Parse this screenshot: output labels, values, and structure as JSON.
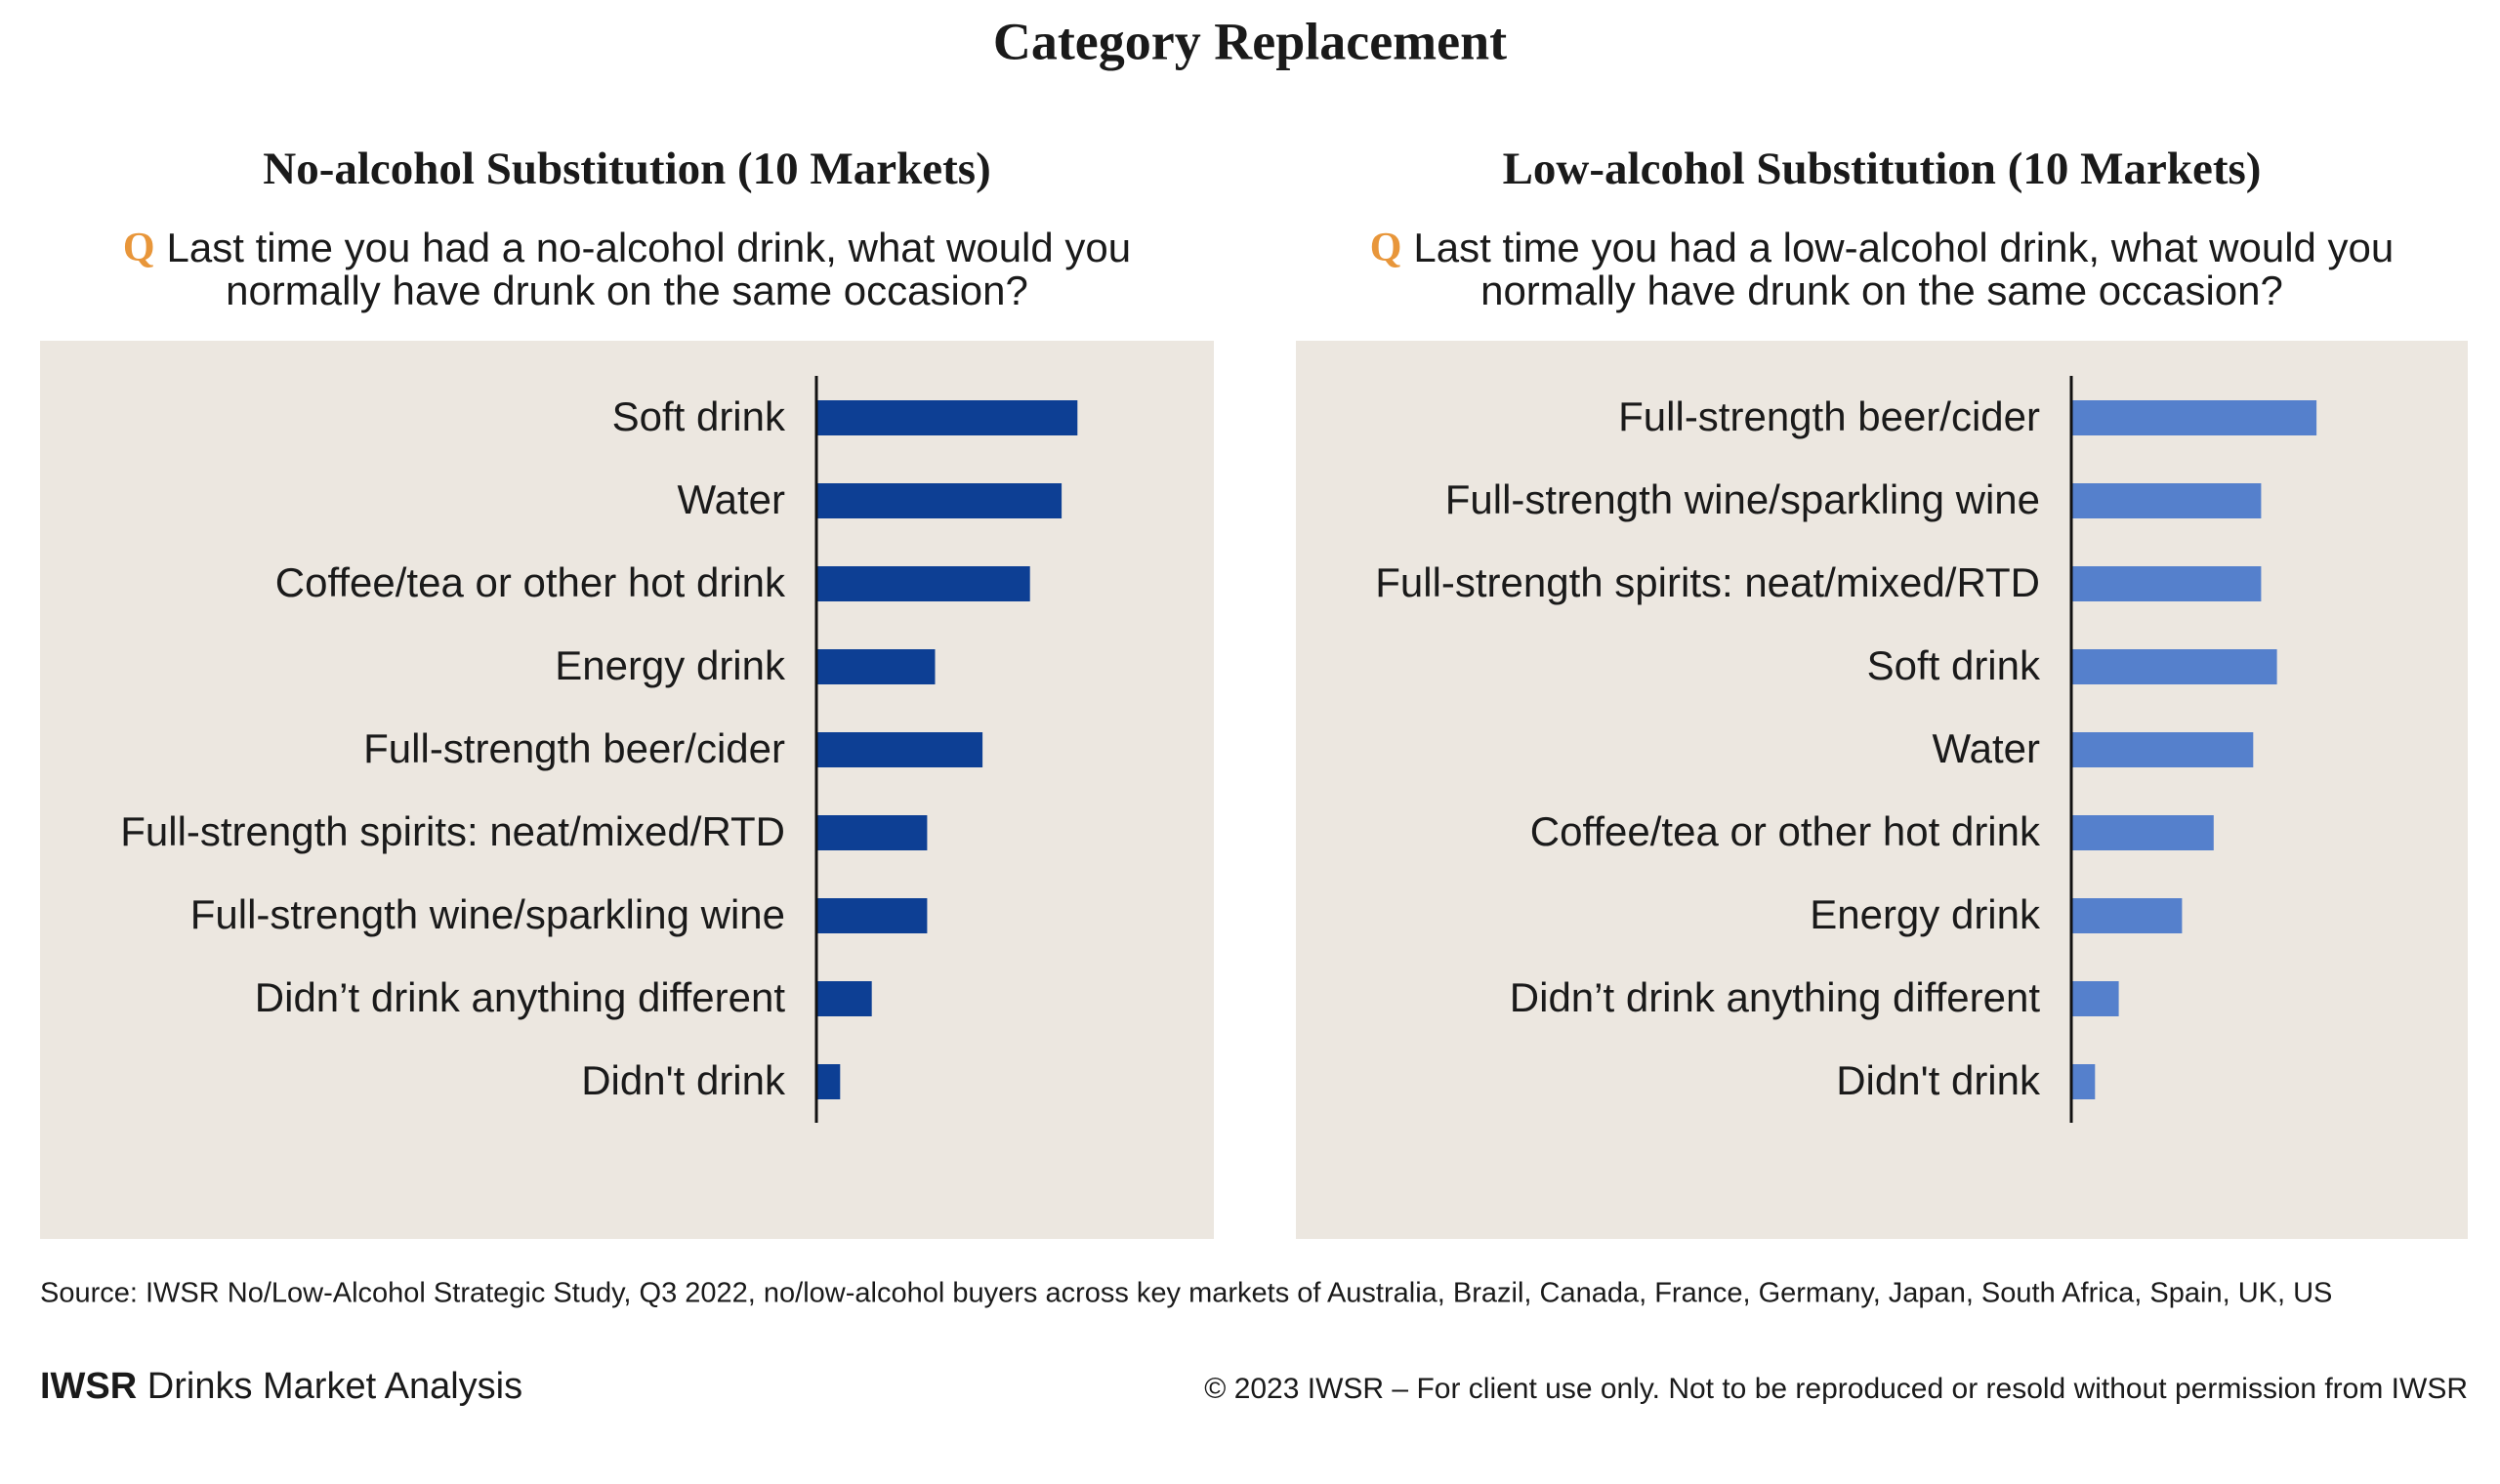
{
  "page": {
    "title": "Category Replacement",
    "source": "Source: IWSR No/Low-Alcohol Strategic Study, Q3 2022, no/low-alcohol buyers across key markets of Australia, Brazil, Canada, France, Germany, Japan, South Africa, Spain, UK, US",
    "brand": "IWSR",
    "brand_suffix": "Drinks Market Analysis",
    "copyright": "© 2023 IWSR – For client use only. Not to be reproduced or resold without permission from IWSR"
  },
  "chart_data": [
    {
      "type": "bar",
      "orientation": "horizontal",
      "title": "No-alcohol Substitution (10 Markets)",
      "question_marker": "Q",
      "question": [
        "Last time you had a no-alcohol drink, what would you",
        "normally have drunk on the same occasion?"
      ],
      "categories": [
        "Soft drink",
        "Water",
        "Coffee/tea or other hot drink",
        "Energy drink",
        "Full-strength beer/cider",
        "Full-strength spirits: neat/mixed/RTD",
        "Full-strength wine/sparkling wine",
        "Didn’t drink anything different",
        "Didn't drink"
      ],
      "values": [
        33,
        31,
        27,
        15,
        21,
        14,
        14,
        7,
        3
      ],
      "color": "#0d3f94"
    },
    {
      "type": "bar",
      "orientation": "horizontal",
      "title": "Low-alcohol Substitution (10 Markets)",
      "question_marker": "Q",
      "question": [
        "Last time you had a low-alcohol drink, what would you",
        "normally have drunk on the same occasion?"
      ],
      "categories": [
        "Full-strength beer/cider",
        "Full-strength wine/sparkling wine",
        "Full-strength spirits: neat/mixed/RTD",
        "Soft drink",
        "Water",
        "Coffee/tea or other hot drink",
        "Energy drink",
        "Didn’t drink anything different",
        "Didn't drink"
      ],
      "values": [
        31,
        24,
        24,
        26,
        23,
        18,
        14,
        6,
        3
      ],
      "color": "#5580cc"
    }
  ]
}
